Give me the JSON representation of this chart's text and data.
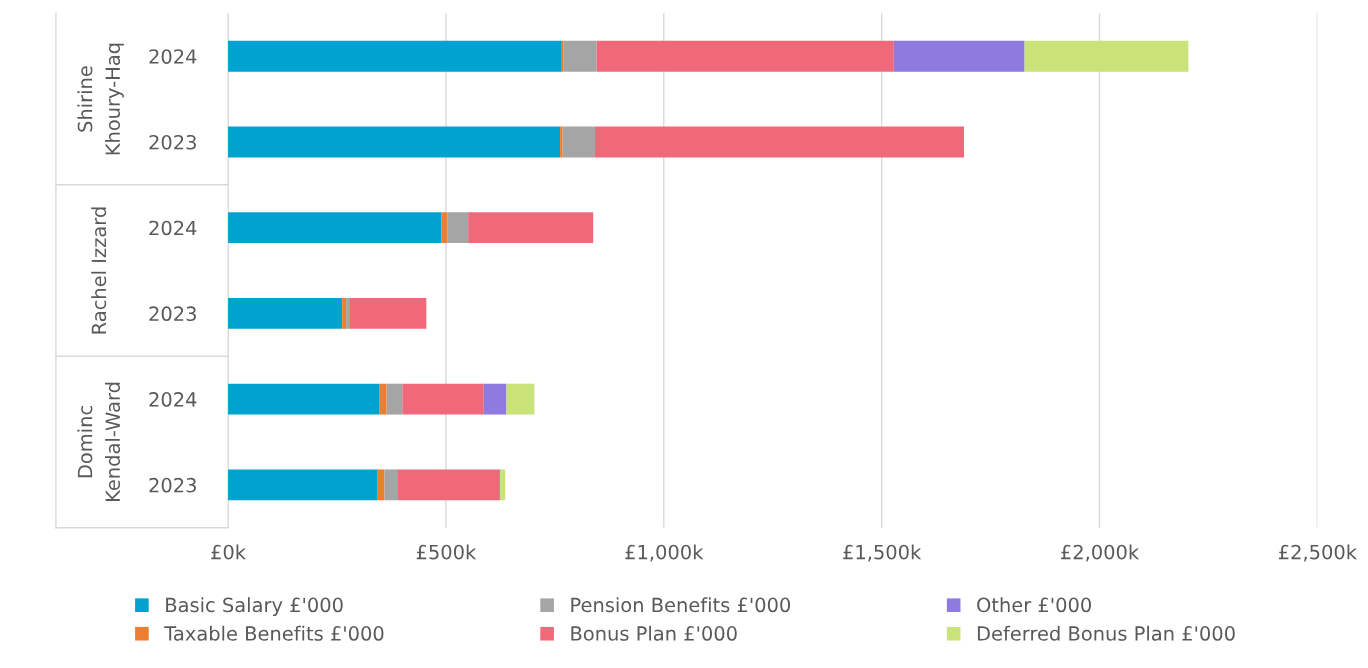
{
  "chart_data": {
    "type": "bar",
    "orientation": "horizontal",
    "stacked": true,
    "categories": [
      "2024",
      "2023",
      "2024",
      "2023",
      "2024",
      "2023"
    ],
    "annotations": [
      "Shirine\nKhoury-Haq",
      "Rachel Izzard",
      "Dominc\nKendal-Ward"
    ],
    "series": [
      {
        "name": "Basic Salary £'000",
        "color": "#00a2cf",
        "values": [
          766,
          762,
          490,
          262,
          348,
          342
        ]
      },
      {
        "name": "Taxable Benefits £'000",
        "color": "#ed7d31",
        "values": [
          3,
          6,
          13,
          9,
          16,
          17
        ]
      },
      {
        "name": "Pension Benefits £'000",
        "color": "#a5a5a5",
        "values": [
          77,
          74,
          48,
          7,
          36,
          31
        ]
      },
      {
        "name": "Bonus Plan £'000",
        "color": "#f0697a",
        "values": [
          682,
          847,
          287,
          177,
          187,
          234
        ]
      },
      {
        "name": "Other £'000",
        "color": "#8f7be0",
        "values": [
          300,
          0,
          0,
          0,
          52,
          0
        ]
      },
      {
        "name": "Deferred Bonus Plan £'000",
        "color": "#c9e27a",
        "values": [
          376,
          0,
          0,
          0,
          64,
          12
        ]
      }
    ],
    "xlim": [
      0,
      2500
    ],
    "xticks": [
      {
        "value": 0,
        "label": "£0k"
      },
      {
        "value": 500,
        "label": "£500k"
      },
      {
        "value": 1000,
        "label": "£1,000k"
      },
      {
        "value": 1500,
        "label": "£1,500k"
      },
      {
        "value": 2000,
        "label": "£2,000k"
      },
      {
        "value": 2500,
        "label": "£2,500k"
      }
    ],
    "grid": "x",
    "legend": "bottom"
  }
}
